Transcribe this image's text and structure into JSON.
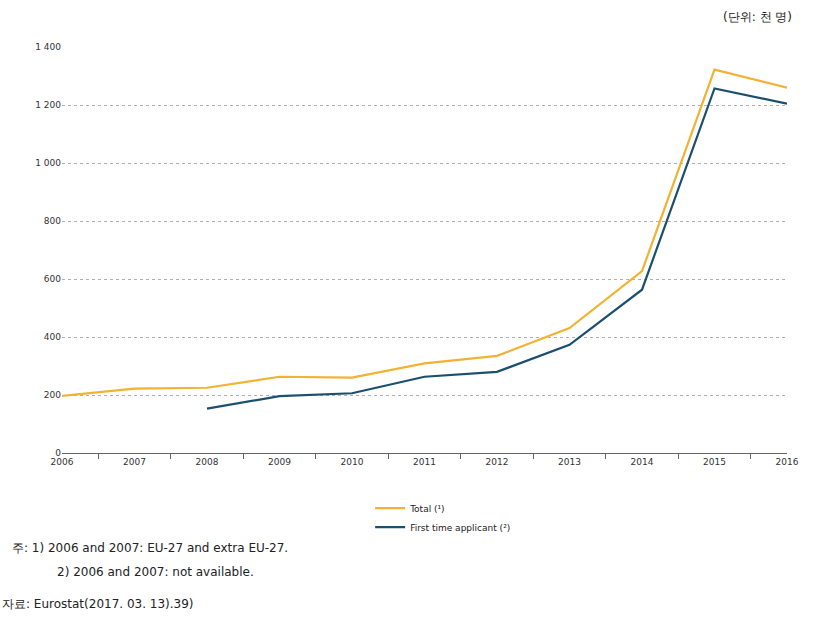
{
  "chart_data": {
    "type": "line",
    "unit_label": "(단위: 천 명)",
    "categories": [
      "2006",
      "2007",
      "2008",
      "2009",
      "2010",
      "2011",
      "2012",
      "2013",
      "2014",
      "2015",
      "2016"
    ],
    "series": [
      {
        "name": "Total (¹)",
        "color": "#f2b233",
        "values": [
          197,
          222,
          225,
          263,
          260,
          309,
          335,
          431,
          627,
          1322,
          1260
        ]
      },
      {
        "name": "First time applicant (²)",
        "color": "#1b4f6e",
        "values": [
          null,
          null,
          153,
          196,
          206,
          263,
          280,
          373,
          563,
          1257,
          1205
        ]
      }
    ],
    "ylim": [
      0,
      1400
    ],
    "yticks": [
      0,
      200,
      400,
      600,
      800,
      {
        "value": 1000,
        "label": "1 000"
      },
      {
        "value": 1200,
        "label": "1 200"
      },
      {
        "value": 1400,
        "label": "1 400"
      }
    ],
    "grid": true,
    "legend": "bottom",
    "notes": [
      "주: 1) 2006 and 2007: EU-27 and extra EU-27.",
      "2) 2006 and 2007: not available."
    ],
    "source": "자료: Eurostat(2017. 03. 13).39)"
  }
}
